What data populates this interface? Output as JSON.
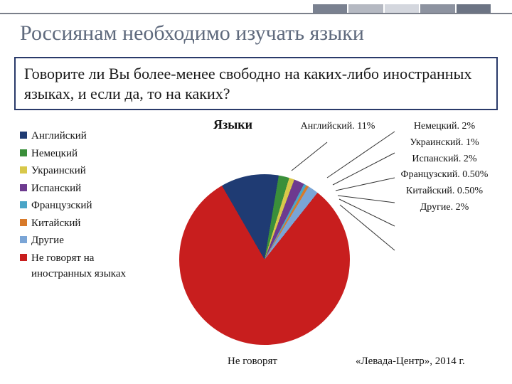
{
  "header": {
    "title": "Россиянам необходимо изучать языки",
    "title_color": "#5f6a7d",
    "title_fontsize": 30,
    "topbar_colors": [
      "#7a8190",
      "#b5b9c2",
      "#d4d7de",
      "#8d93a0",
      "#6c7484"
    ]
  },
  "question": {
    "text": "Говорите ли Вы более-менее свободно на каких-либо иностранных языках, и если да, то на каких?",
    "border_color": "#2a3a6a",
    "fontsize": 22
  },
  "chart": {
    "type": "pie",
    "title": "Языки",
    "title_fontsize": 18,
    "background_color": "#ffffff",
    "pulled_out_slice_index": 7,
    "slices": [
      {
        "label": "Английский",
        "value": 11,
        "color": "#1f3b73",
        "callout": "Английский. 11%"
      },
      {
        "label": "Немецкий",
        "value": 2,
        "color": "#3a8f3a",
        "callout": "Немецкий. 2%"
      },
      {
        "label": "Украинский",
        "value": 1,
        "color": "#d8c84a",
        "callout": "Украинский. 1%"
      },
      {
        "label": "Испанский",
        "value": 2,
        "color": "#6d3a8f",
        "callout": "Испанский. 2%"
      },
      {
        "label": "Французский",
        "value": 0.5,
        "color": "#4aa5c7",
        "callout": "Французский. 0.50%"
      },
      {
        "label": "Китайский",
        "value": 0.5,
        "color": "#d87a2a",
        "callout": "Китайский. 0.50%"
      },
      {
        "label": "Другие",
        "value": 2,
        "color": "#7aa5d6",
        "callout": "Другие. 2%"
      },
      {
        "label": "Не говорят на иностранных языках",
        "value": 81,
        "color": "#c81e1e",
        "callout": "Не говорят"
      }
    ],
    "legend_items": [
      {
        "label": "Английский",
        "color": "#1f3b73"
      },
      {
        "label": "Немецкий",
        "color": "#3a8f3a"
      },
      {
        "label": "Украинский",
        "color": "#d8c84a"
      },
      {
        "label": "Испанский",
        "color": "#6d3a8f"
      },
      {
        "label": "Французский",
        "color": "#4aa5c7"
      },
      {
        "label": "Китайский",
        "color": "#d87a2a"
      },
      {
        "label": "Другие",
        "color": "#7aa5d6"
      },
      {
        "label": "Не говорят на иностранных языках",
        "color": "#c81e1e"
      }
    ],
    "legend_fontsize": 15,
    "callout_fontsize": 14
  },
  "footer": {
    "bottom_label": "Не говорят",
    "source": "«Левада-Центр», 2014 г."
  }
}
